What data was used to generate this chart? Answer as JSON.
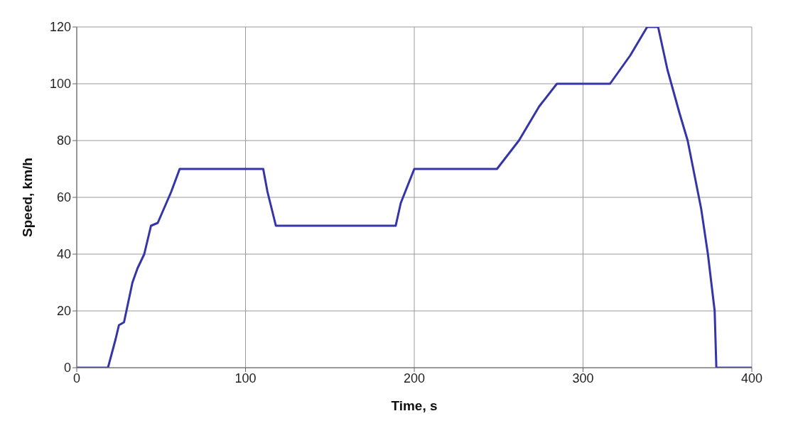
{
  "chart_data": {
    "type": "line",
    "xlabel": "Time, s",
    "ylabel": "Speed, km/h",
    "x": [
      0,
      18.5,
      23,
      25,
      28,
      33,
      36,
      40,
      44,
      48,
      56,
      61,
      110.5,
      113,
      118,
      189,
      192,
      200,
      249,
      262,
      274,
      284.5,
      316,
      328,
      338,
      344.5,
      350,
      357,
      362,
      370,
      374,
      378,
      379,
      400
    ],
    "series": [
      {
        "color": "#3535a8",
        "values": [
          0,
          0,
          10,
          15,
          16,
          30,
          35,
          40,
          50,
          51,
          62,
          70,
          70,
          62,
          50,
          50,
          58,
          70,
          70,
          80,
          92,
          100,
          100,
          110,
          120,
          120,
          105,
          90,
          80,
          56,
          40,
          20,
          0,
          0
        ]
      }
    ],
    "xlim": [
      0,
      400
    ],
    "xticks": [
      0,
      100,
      200,
      300,
      400
    ],
    "ylim": [
      0,
      120
    ],
    "yticks": [
      0,
      20,
      40,
      60,
      80,
      100,
      120
    ],
    "grid": true,
    "legend": false,
    "marker": "none",
    "line_style": "solid"
  }
}
